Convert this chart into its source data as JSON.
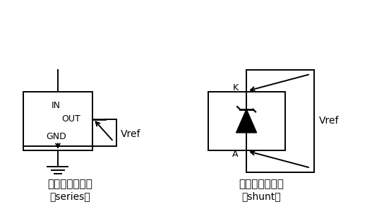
{
  "bg_color": "#ffffff",
  "line_color": "#000000",
  "title1": "串联型电压基准",
  "subtitle1": "（series）",
  "title2": "并联型电压基准",
  "subtitle2": "（shunt）",
  "title_fontsize": 11,
  "subtitle_fontsize": 10,
  "label_fontsize": 9,
  "vref_fontsize": 10
}
